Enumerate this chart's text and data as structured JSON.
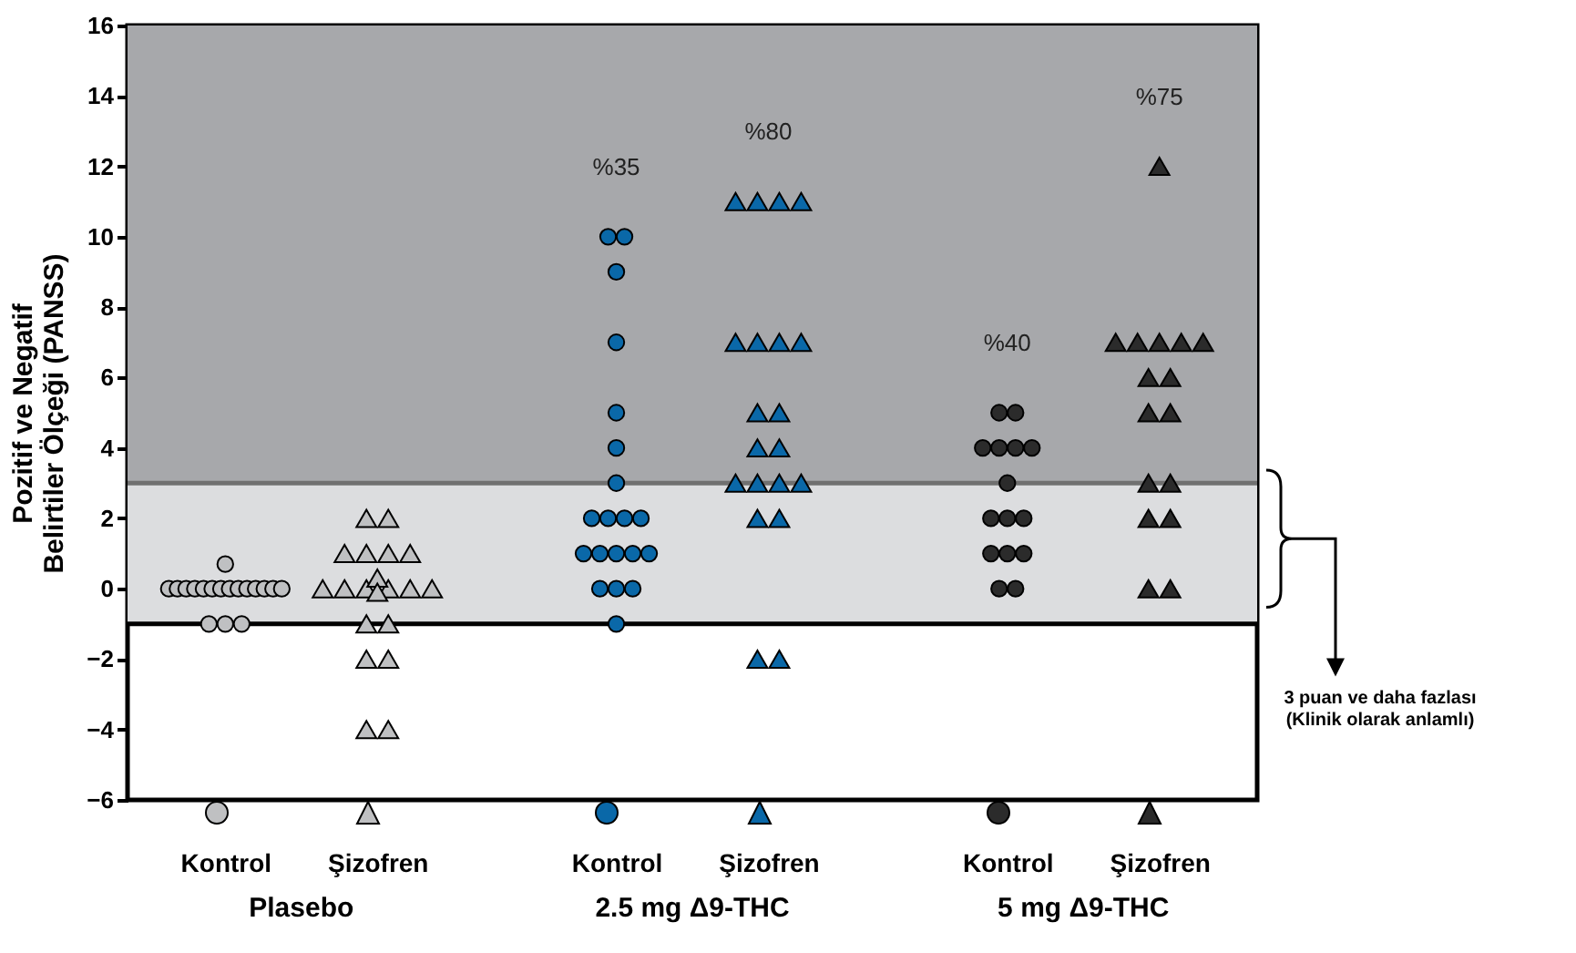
{
  "chart_data": {
    "type": "scatter",
    "ylabel": "Pozitif ve Negatif Belirtiler Ölçeği (PANSS)",
    "categories": [
      "Kontrol",
      "Şizofren",
      "Kontrol",
      "Şizofren",
      "Kontrol",
      "Şizofren"
    ],
    "series": [
      {
        "marker": "circle",
        "colors": [
          "#bfc0c2",
          null,
          "#0a68a8",
          null,
          "#2b2b2b",
          null
        ],
        "values": [
          0.7,
          null,
          10,
          null,
          5,
          null
        ]
      },
      {
        "marker": "circle",
        "colors": [
          "#bfc0c2",
          null,
          "#0a68a8",
          null,
          "#2b2b2b",
          null
        ],
        "values": [
          0,
          null,
          10,
          null,
          5,
          null
        ]
      },
      {
        "marker": "circle",
        "colors": [
          "#bfc0c2",
          null,
          "#0a68a8",
          null,
          "#2b2b2b",
          null
        ],
        "values": [
          0,
          null,
          9,
          null,
          4,
          null
        ]
      },
      {
        "marker": "circle",
        "colors": [
          "#bfc0c2",
          null,
          "#0a68a8",
          null,
          "#2b2b2b",
          null
        ],
        "values": [
          0,
          null,
          7,
          null,
          4,
          null
        ]
      },
      {
        "marker": "circle",
        "colors": [
          "#bfc0c2",
          null,
          "#0a68a8",
          null,
          "#2b2b2b",
          null
        ],
        "values": [
          0,
          null,
          5,
          null,
          4,
          null
        ]
      },
      {
        "marker": "circle",
        "colors": [
          "#bfc0c2",
          null,
          "#0a68a8",
          null,
          "#2b2b2b",
          null
        ],
        "values": [
          0,
          null,
          4,
          null,
          4,
          null
        ]
      },
      {
        "marker": "circle",
        "colors": [
          "#bfc0c2",
          null,
          "#0a68a8",
          null,
          "#2b2b2b",
          null
        ],
        "values": [
          0,
          null,
          3,
          null,
          3,
          null
        ]
      },
      {
        "marker": "circle",
        "colors": [
          "#bfc0c2",
          null,
          "#0a68a8",
          null,
          "#2b2b2b",
          null
        ],
        "values": [
          0,
          null,
          2,
          null,
          2,
          null
        ]
      },
      {
        "marker": "circle",
        "colors": [
          "#bfc0c2",
          null,
          "#0a68a8",
          null,
          "#2b2b2b",
          null
        ],
        "values": [
          0,
          null,
          2,
          null,
          2,
          null
        ]
      },
      {
        "marker": "circle",
        "colors": [
          "#bfc0c2",
          null,
          "#0a68a8",
          null,
          "#2b2b2b",
          null
        ],
        "values": [
          0,
          null,
          2,
          null,
          2,
          null
        ]
      },
      {
        "marker": "circle",
        "colors": [
          "#bfc0c2",
          null,
          "#0a68a8",
          null,
          "#2b2b2b",
          null
        ],
        "values": [
          0,
          null,
          2,
          null,
          1,
          null
        ]
      },
      {
        "marker": "circle",
        "colors": [
          "#bfc0c2",
          null,
          "#0a68a8",
          null,
          "#2b2b2b",
          null
        ],
        "values": [
          0,
          null,
          1,
          null,
          1,
          null
        ]
      },
      {
        "marker": "circle",
        "colors": [
          "#bfc0c2",
          null,
          "#0a68a8",
          null,
          "#2b2b2b",
          null
        ],
        "values": [
          0,
          null,
          1,
          null,
          1,
          null
        ]
      },
      {
        "marker": "circle",
        "colors": [
          "#bfc0c2",
          null,
          "#0a68a8",
          null,
          "#2b2b2b",
          null
        ],
        "values": [
          0,
          null,
          1,
          null,
          0,
          null
        ]
      },
      {
        "marker": "circle",
        "colors": [
          "#bfc0c2",
          null,
          "#0a68a8",
          null,
          "#2b2b2b",
          null
        ],
        "values": [
          0,
          null,
          1,
          null,
          0,
          null
        ]
      },
      {
        "marker": "circle",
        "colors": [
          "#bfc0c2",
          null,
          "#0a68a8",
          null,
          null,
          null
        ],
        "values": [
          -1,
          null,
          1,
          null,
          null,
          null
        ]
      },
      {
        "marker": "circle",
        "colors": [
          "#bfc0c2",
          null,
          "#0a68a8",
          null,
          null,
          null
        ],
        "values": [
          -1,
          null,
          0,
          null,
          null,
          null
        ]
      },
      {
        "marker": "circle",
        "colors": [
          "#bfc0c2",
          null,
          "#0a68a8",
          null,
          null,
          null
        ],
        "values": [
          -1,
          null,
          0,
          null,
          null,
          null
        ]
      },
      {
        "marker": "circle",
        "colors": [
          null,
          null,
          "#0a68a8",
          null,
          null,
          null
        ],
        "values": [
          null,
          null,
          0,
          null,
          null,
          null
        ]
      },
      {
        "marker": "circle",
        "colors": [
          null,
          null,
          "#0a68a8",
          null,
          null,
          null
        ],
        "values": [
          null,
          null,
          -1,
          null,
          null,
          null
        ]
      },
      {
        "marker": "triangle",
        "colors": [
          null,
          "#bfc0c2",
          null,
          "#0a68a8",
          null,
          "#2b2b2b"
        ],
        "values": [
          null,
          2,
          null,
          11,
          null,
          12
        ]
      },
      {
        "marker": "triangle",
        "colors": [
          null,
          "#bfc0c2",
          null,
          "#0a68a8",
          null,
          "#2b2b2b"
        ],
        "values": [
          null,
          2,
          null,
          11,
          null,
          7
        ]
      },
      {
        "marker": "triangle",
        "colors": [
          null,
          "#bfc0c2",
          null,
          "#0a68a8",
          null,
          "#2b2b2b"
        ],
        "values": [
          null,
          1,
          null,
          11,
          null,
          7
        ]
      },
      {
        "marker": "triangle",
        "colors": [
          null,
          "#bfc0c2",
          null,
          "#0a68a8",
          null,
          "#2b2b2b"
        ],
        "values": [
          null,
          1,
          null,
          11,
          null,
          7
        ]
      },
      {
        "marker": "triangle",
        "colors": [
          null,
          "#bfc0c2",
          null,
          "#0a68a8",
          null,
          "#2b2b2b"
        ],
        "values": [
          null,
          1,
          null,
          7,
          null,
          7
        ]
      },
      {
        "marker": "triangle",
        "colors": [
          null,
          "#bfc0c2",
          null,
          "#0a68a8",
          null,
          "#2b2b2b"
        ],
        "values": [
          null,
          1,
          null,
          7,
          null,
          7
        ]
      },
      {
        "marker": "triangle",
        "colors": [
          null,
          "#bfc0c2",
          null,
          "#0a68a8",
          null,
          "#2b2b2b"
        ],
        "values": [
          null,
          0.3,
          null,
          7,
          null,
          6
        ]
      },
      {
        "marker": "triangle",
        "colors": [
          null,
          "#bfc0c2",
          null,
          "#0a68a8",
          null,
          "#2b2b2b"
        ],
        "values": [
          null,
          -0.1,
          null,
          7,
          null,
          6
        ]
      },
      {
        "marker": "triangle",
        "colors": [
          null,
          "#bfc0c2",
          null,
          "#0a68a8",
          null,
          "#2b2b2b"
        ],
        "values": [
          null,
          0,
          null,
          5,
          null,
          5
        ]
      },
      {
        "marker": "triangle",
        "colors": [
          null,
          "#bfc0c2",
          null,
          "#0a68a8",
          null,
          "#2b2b2b"
        ],
        "values": [
          null,
          0,
          null,
          5,
          null,
          5
        ]
      },
      {
        "marker": "triangle",
        "colors": [
          null,
          "#bfc0c2",
          null,
          "#0a68a8",
          null,
          "#2b2b2b"
        ],
        "values": [
          null,
          0,
          null,
          4,
          null,
          3
        ]
      },
      {
        "marker": "triangle",
        "colors": [
          null,
          "#bfc0c2",
          null,
          "#0a68a8",
          null,
          "#2b2b2b"
        ],
        "values": [
          null,
          0,
          null,
          4,
          null,
          3
        ]
      },
      {
        "marker": "triangle",
        "colors": [
          null,
          "#bfc0c2",
          null,
          "#0a68a8",
          null,
          "#2b2b2b"
        ],
        "values": [
          null,
          0,
          null,
          3,
          null,
          2
        ]
      },
      {
        "marker": "triangle",
        "colors": [
          null,
          "#bfc0c2",
          null,
          "#0a68a8",
          null,
          "#2b2b2b"
        ],
        "values": [
          null,
          0,
          null,
          3,
          null,
          2
        ]
      },
      {
        "marker": "triangle",
        "colors": [
          null,
          "#bfc0c2",
          null,
          "#0a68a8",
          null,
          "#2b2b2b"
        ],
        "values": [
          null,
          -1,
          null,
          3,
          null,
          0
        ]
      },
      {
        "marker": "triangle",
        "colors": [
          null,
          "#bfc0c2",
          null,
          "#0a68a8",
          null,
          "#2b2b2b"
        ],
        "values": [
          null,
          -1,
          null,
          3,
          null,
          0
        ]
      },
      {
        "marker": "triangle",
        "colors": [
          null,
          "#bfc0c2",
          null,
          "#0a68a8",
          null,
          null
        ],
        "values": [
          null,
          -2,
          null,
          2,
          null,
          null
        ]
      },
      {
        "marker": "triangle",
        "colors": [
          null,
          "#bfc0c2",
          null,
          "#0a68a8",
          null,
          null
        ],
        "values": [
          null,
          -2,
          null,
          2,
          null,
          null
        ]
      },
      {
        "marker": "triangle",
        "colors": [
          null,
          "#bfc0c2",
          null,
          "#0a68a8",
          null,
          null
        ],
        "values": [
          null,
          -4,
          null,
          -2,
          null,
          null
        ]
      },
      {
        "marker": "triangle",
        "colors": [
          null,
          "#bfc0c2",
          null,
          "#0a68a8",
          null,
          null
        ],
        "values": [
          null,
          -4,
          null,
          -2,
          null,
          null
        ]
      }
    ],
    "ylim": [
      -6,
      16
    ],
    "yticks": [
      -6,
      -4,
      -2,
      0,
      2,
      4,
      6,
      8,
      10,
      12,
      14,
      16
    ],
    "bands": [
      {
        "axis": "y",
        "from": 3,
        "to": 16,
        "color": "#a7a8ab"
      },
      {
        "axis": "y",
        "from": -1,
        "to": 3,
        "color": "#dcdddf"
      }
    ],
    "ref_lines": [
      {
        "axis": "y",
        "value": 3,
        "color": "#707070"
      },
      {
        "axis": "y",
        "value": -1,
        "color": "#000000"
      }
    ],
    "annotations": [
      "Plasebo",
      "2.5 mg Δ9-THC",
      "5 mg Δ9-THC",
      "3 puan ve daha fazlası (Klinik olarak anlamlı)",
      "%35",
      "%80",
      "%40",
      "%75"
    ]
  }
}
